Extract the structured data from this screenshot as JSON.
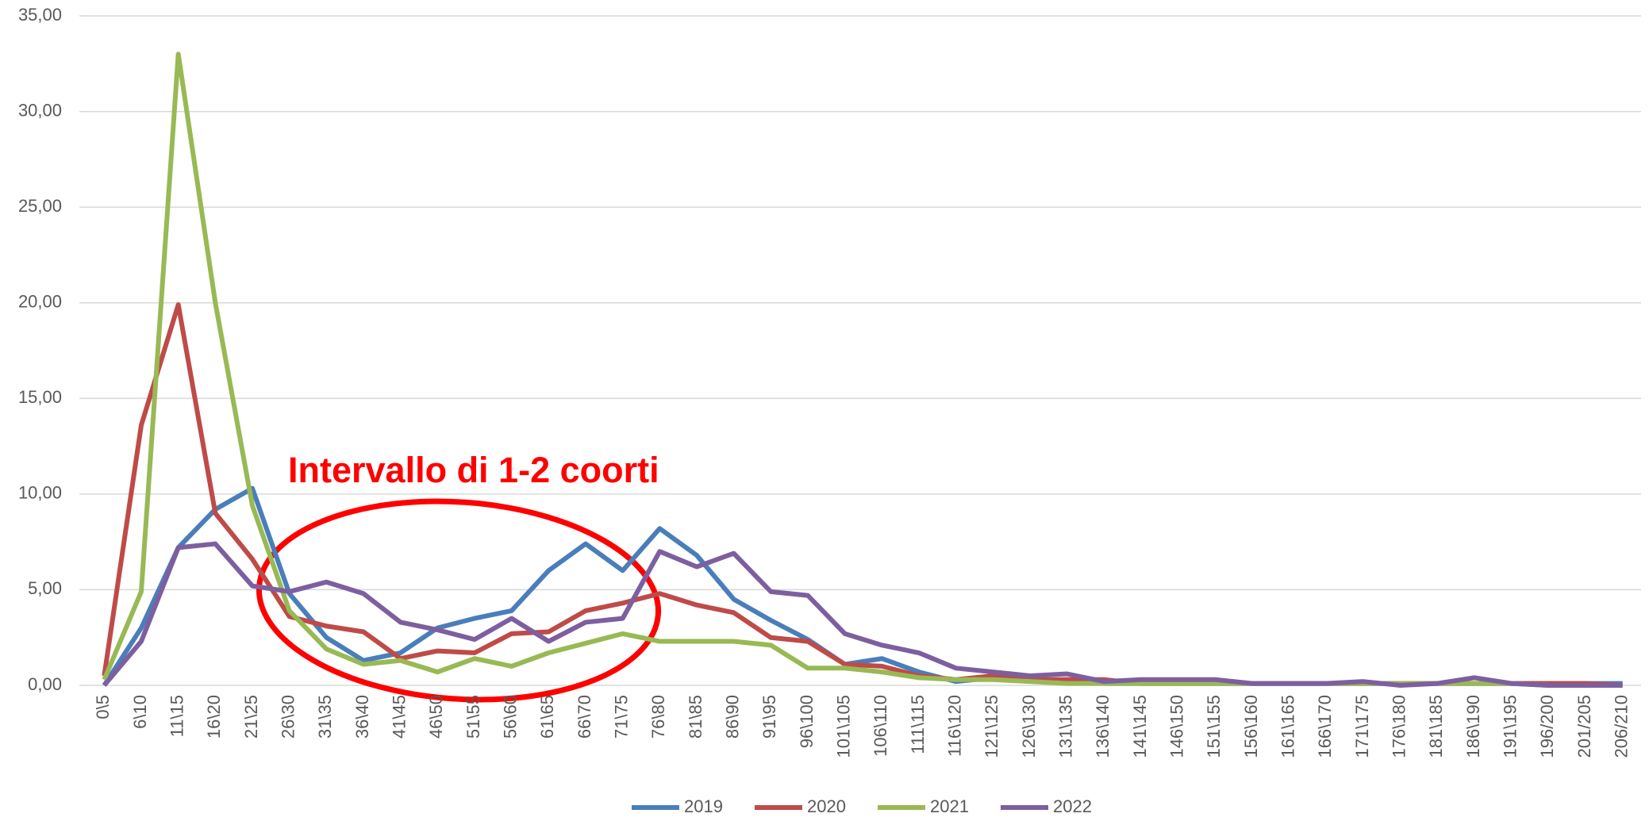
{
  "chart_data": {
    "type": "line",
    "annotation": "Intervallo di 1-2 coorti",
    "categories": [
      "0\\5",
      "6\\10",
      "11\\15",
      "16\\20",
      "21\\25",
      "26\\30",
      "31\\35",
      "36\\40",
      "41\\45",
      "46\\50",
      "51\\55",
      "56\\60",
      "61\\65",
      "66\\70",
      "71\\75",
      "76\\80",
      "81\\85",
      "86\\90",
      "91\\95",
      "96\\100",
      "101\\105",
      "106\\110",
      "111\\115",
      "116\\120",
      "121\\125",
      "126\\130",
      "131\\135",
      "136\\140",
      "141\\145",
      "146\\150",
      "151\\155",
      "156\\160",
      "161\\165",
      "166\\170",
      "171\\175",
      "176\\180",
      "181\\185",
      "186\\190",
      "191\\195",
      "196/200",
      "201/205",
      "206/210"
    ],
    "series": [
      {
        "name": "2019",
        "color": "#4a7ebb",
        "values": [
          0,
          3.0,
          7.2,
          9.2,
          10.3,
          4.8,
          2.5,
          1.3,
          1.7,
          3.0,
          3.5,
          3.9,
          6.0,
          7.4,
          6.0,
          8.2,
          6.8,
          4.5,
          3.4,
          2.4,
          1.1,
          1.4,
          0.7,
          0.2,
          0.4,
          0.2,
          0.3,
          0.1,
          0.1,
          0.1,
          0.1,
          0.1,
          0.1,
          0.1,
          0.1,
          0.1,
          0.1,
          0.1,
          0.1,
          0.1,
          0.1,
          0.1
        ]
      },
      {
        "name": "2020",
        "color": "#be4b48",
        "values": [
          0.5,
          13.6,
          19.9,
          9.0,
          6.6,
          3.6,
          3.1,
          2.8,
          1.4,
          1.8,
          1.7,
          2.7,
          2.8,
          3.9,
          4.3,
          4.8,
          4.2,
          3.8,
          2.5,
          2.3,
          1.1,
          1.0,
          0.5,
          0.3,
          0.5,
          0.3,
          0.3,
          0.3,
          0.1,
          0.1,
          0.1,
          0.1,
          0.1,
          0.1,
          0.1,
          0.1,
          0.1,
          0.1,
          0.1,
          0.1,
          0.1,
          0
        ]
      },
      {
        "name": "2021",
        "color": "#98b954",
        "values": [
          0.3,
          4.9,
          33.0,
          20.0,
          9.4,
          3.9,
          1.9,
          1.1,
          1.3,
          0.7,
          1.4,
          1.0,
          1.7,
          2.2,
          2.7,
          2.3,
          2.3,
          2.3,
          2.1,
          0.9,
          0.9,
          0.7,
          0.4,
          0.3,
          0.3,
          0.2,
          0.1,
          0.1,
          0.1,
          0.1,
          0.1,
          0.1,
          0.1,
          0.1,
          0.1,
          0.1,
          0.1,
          0.1,
          0.1,
          0,
          0,
          0
        ]
      },
      {
        "name": "2022",
        "color": "#7d5fa0",
        "values": [
          0,
          2.3,
          7.2,
          7.4,
          5.2,
          4.9,
          5.4,
          4.8,
          3.3,
          2.9,
          2.4,
          3.5,
          2.3,
          3.3,
          3.5,
          7.0,
          6.2,
          6.9,
          4.9,
          4.7,
          2.7,
          2.1,
          1.7,
          0.9,
          0.7,
          0.5,
          0.6,
          0.2,
          0.3,
          0.3,
          0.3,
          0.1,
          0.1,
          0.1,
          0.2,
          0,
          0.1,
          0.4,
          0.1,
          0,
          0,
          0
        ]
      }
    ],
    "ylim": [
      0,
      35
    ],
    "yticks": [
      {
        "value": 0,
        "label": "0,00"
      },
      {
        "value": 5,
        "label": "5,00"
      },
      {
        "value": 10,
        "label": "10,00"
      },
      {
        "value": 15,
        "label": "15,00"
      },
      {
        "value": 20,
        "label": "20,00"
      },
      {
        "value": 25,
        "label": "25,00"
      },
      {
        "value": 30,
        "label": "30,00"
      },
      {
        "value": 35,
        "label": "35,00"
      }
    ],
    "grid": true,
    "legend": "bottom"
  }
}
